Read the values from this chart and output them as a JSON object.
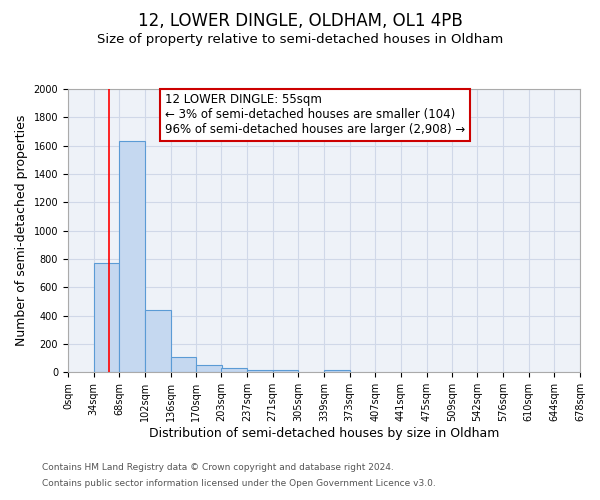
{
  "title": "12, LOWER DINGLE, OLDHAM, OL1 4PB",
  "subtitle": "Size of property relative to semi-detached houses in Oldham",
  "xlabel": "Distribution of semi-detached houses by size in Oldham",
  "ylabel": "Number of semi-detached properties",
  "bin_edges": [
    0,
    34,
    68,
    102,
    136,
    170,
    203,
    237,
    271,
    305,
    339,
    373,
    407,
    441,
    475,
    509,
    542,
    576,
    610,
    644,
    678
  ],
  "bar_heights": [
    0,
    770,
    1630,
    440,
    110,
    50,
    30,
    20,
    15,
    0,
    15,
    0,
    0,
    0,
    0,
    0,
    0,
    0,
    0,
    0
  ],
  "bar_color": "#c5d8f0",
  "bar_edgecolor": "#5b9bd5",
  "grid_color": "#d0d8e8",
  "bg_color": "#eef2f8",
  "red_line_x": 55,
  "annotation_text": "12 LOWER DINGLE: 55sqm\n← 3% of semi-detached houses are smaller (104)\n96% of semi-detached houses are larger (2,908) →",
  "annotation_box_color": "#cc0000",
  "ylim": [
    0,
    2000
  ],
  "yticks": [
    0,
    200,
    400,
    600,
    800,
    1000,
    1200,
    1400,
    1600,
    1800,
    2000
  ],
  "tick_labels": [
    "0sqm",
    "34sqm",
    "68sqm",
    "102sqm",
    "136sqm",
    "170sqm",
    "203sqm",
    "237sqm",
    "271sqm",
    "305sqm",
    "339sqm",
    "373sqm",
    "407sqm",
    "441sqm",
    "475sqm",
    "509sqm",
    "542sqm",
    "576sqm",
    "610sqm",
    "644sqm",
    "678sqm"
  ],
  "footer_line1": "Contains HM Land Registry data © Crown copyright and database right 2024.",
  "footer_line2": "Contains public sector information licensed under the Open Government Licence v3.0.",
  "title_fontsize": 12,
  "subtitle_fontsize": 9.5,
  "axis_label_fontsize": 9,
  "tick_fontsize": 7,
  "annotation_fontsize": 8.5,
  "footer_fontsize": 6.5
}
